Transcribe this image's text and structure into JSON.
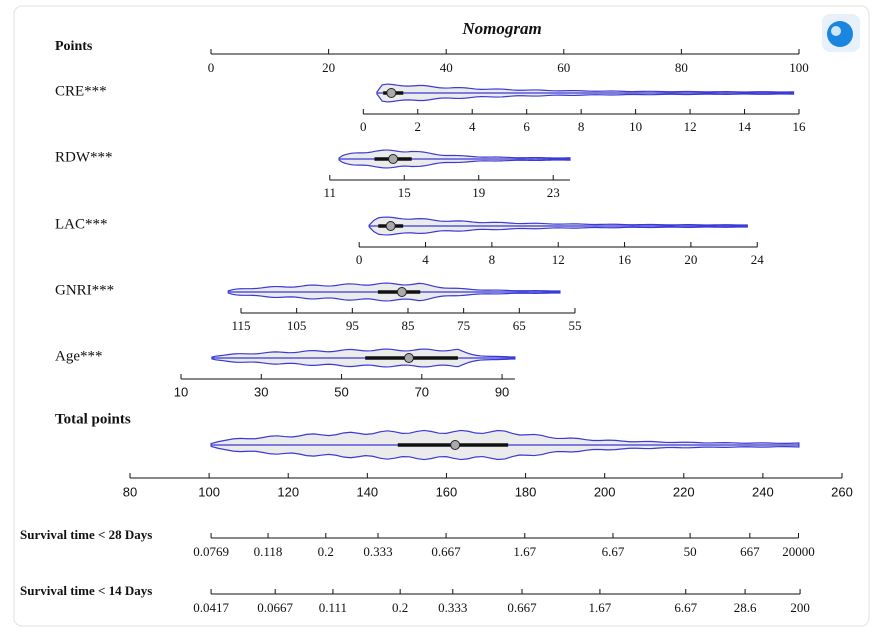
{
  "chart_data": {
    "type": "nomogram",
    "title": "Nomogram",
    "violin_color": "#3a3ad6",
    "violin_fill": "#ebebeb",
    "points_axis": {
      "label": "Points",
      "xlim": [
        0,
        100
      ],
      "ticks": [
        0,
        20,
        40,
        60,
        80,
        100
      ]
    },
    "variables": [
      {
        "label": "CRE***",
        "xlim": [
          0,
          16
        ],
        "points_lim": [
          25.9,
          100
        ],
        "ticks": [
          0,
          2,
          4,
          6,
          8,
          10,
          12,
          14,
          16
        ],
        "min": 0.5,
        "q1": 0.73,
        "median": 1.03,
        "q3": 1.47,
        "max": 15.8
      },
      {
        "label": "RDW***",
        "xlim": [
          11,
          23
        ],
        "points_lim": [
          20.2,
          58.2
        ],
        "ticks": [
          11,
          15,
          19,
          23
        ],
        "min": 11.5,
        "q1": 13.4,
        "median": 14.4,
        "q3": 15.4,
        "max": 23.9
      },
      {
        "label": "LAC***",
        "xlim": [
          0,
          24
        ],
        "points_lim": [
          25.2,
          92.9
        ],
        "ticks": [
          0,
          4,
          8,
          12,
          16,
          20,
          24
        ],
        "min": 0.6,
        "q1": 1.15,
        "median": 1.9,
        "q3": 2.65,
        "max": 23.4
      },
      {
        "label": "GNRI***",
        "xlim": [
          115,
          55
        ],
        "points_lim": [
          5.1,
          61.9
        ],
        "ticks": [
          115,
          105,
          95,
          85,
          75,
          65,
          55
        ],
        "min": 57.7,
        "q1": 82.8,
        "median": 86.1,
        "q3": 90.4,
        "max": 117.3
      },
      {
        "label": "Age***",
        "xlim": [
          10,
          90
        ],
        "points_lim": [
          -5.1,
          49.5
        ],
        "ticks": [
          10,
          30,
          50,
          70,
          90
        ],
        "min": 17.7,
        "q1": 55.9,
        "median": 66.8,
        "q3": 79,
        "max": 93.2
      }
    ],
    "total_axis": {
      "label": "Total points",
      "xlim": [
        80,
        260
      ],
      "ticks": [
        80,
        100,
        120,
        140,
        160,
        180,
        200,
        220,
        240,
        260
      ],
      "min": 100.5,
      "q1": 147.7,
      "median": 162.2,
      "q3": 175.6,
      "max": 249.1
    },
    "outcomes": [
      {
        "label": "Survival time < 28 Days",
        "ticks": [
          0.0769,
          0.118,
          0.2,
          0.333,
          0.667,
          1.67,
          6.67,
          50,
          667,
          20000
        ],
        "tick_points": [
          100.5,
          114.9,
          129.5,
          142.7,
          159.9,
          179.8,
          202.1,
          221.6,
          236.7,
          249
        ]
      },
      {
        "label": "Survival time < 14 Days",
        "ticks": [
          0.0417,
          0.0667,
          0.111,
          0.2,
          0.333,
          0.667,
          1.67,
          6.67,
          28.6,
          200
        ],
        "tick_points": [
          100.5,
          116.7,
          131.3,
          148.3,
          161.6,
          179.1,
          198.8,
          220.5,
          235.5,
          249.4
        ]
      }
    ]
  }
}
